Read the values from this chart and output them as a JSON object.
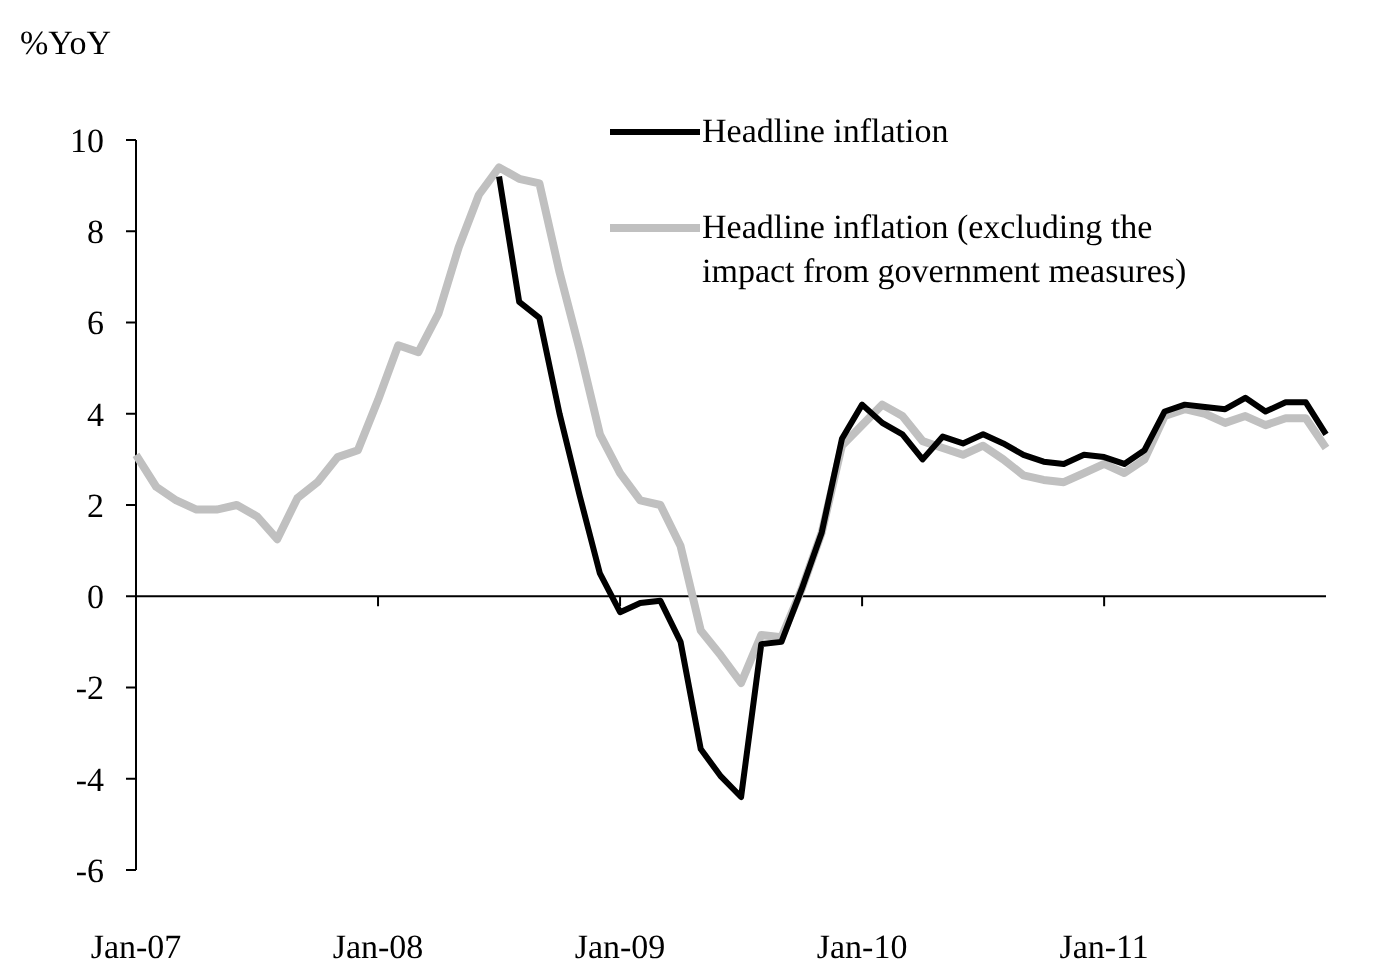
{
  "chart_data": {
    "type": "line",
    "ylabel": "%YoY",
    "categories": [
      "Jan-07",
      null,
      null,
      null,
      null,
      null,
      null,
      null,
      null,
      null,
      null,
      null,
      "Jan-08",
      null,
      null,
      null,
      null,
      null,
      null,
      null,
      null,
      null,
      null,
      null,
      "Jan-09",
      null,
      null,
      null,
      null,
      null,
      null,
      null,
      null,
      null,
      null,
      null,
      "Jan-10",
      null,
      null,
      null,
      null,
      null,
      null,
      null,
      null,
      null,
      null,
      null,
      "Jan-11",
      null,
      null,
      null,
      null,
      null,
      null,
      null,
      null,
      null,
      null,
      null
    ],
    "series": [
      {
        "name": "Headline inflation (excluding the impact from government measures)",
        "color": "#c0c0c0",
        "values": [
          3.1,
          2.4,
          2.1,
          1.9,
          1.9,
          2.0,
          1.75,
          1.25,
          2.15,
          2.5,
          3.05,
          3.2,
          4.3,
          5.5,
          5.35,
          6.2,
          7.65,
          8.8,
          9.4,
          9.15,
          9.05,
          7.1,
          5.4,
          3.55,
          2.7,
          2.1,
          2.0,
          1.1,
          -0.75,
          -1.3,
          -1.9,
          -0.85,
          -0.9,
          0.15,
          1.4,
          3.3,
          3.75,
          4.2,
          3.95,
          3.4,
          3.25,
          3.1,
          3.3,
          3.0,
          2.65,
          2.55,
          2.5,
          2.7,
          2.9,
          2.7,
          3.0,
          3.95,
          4.1,
          4.0,
          3.8,
          3.95,
          3.75,
          3.9,
          3.9,
          3.25
        ]
      },
      {
        "name": "Headline inflation",
        "color": "#000000",
        "values": [
          null,
          null,
          null,
          null,
          null,
          null,
          null,
          null,
          null,
          null,
          null,
          null,
          null,
          null,
          null,
          null,
          null,
          null,
          9.2,
          6.45,
          6.1,
          4.0,
          2.2,
          0.5,
          -0.35,
          -0.15,
          -0.1,
          -1.0,
          -3.35,
          -3.95,
          -4.4,
          -1.05,
          -1.0,
          0.15,
          1.4,
          3.45,
          4.2,
          3.8,
          3.55,
          3.0,
          3.5,
          3.35,
          3.55,
          3.35,
          3.1,
          2.95,
          2.9,
          3.1,
          3.05,
          2.9,
          3.2,
          4.05,
          4.2,
          4.15,
          4.1,
          4.35,
          4.05,
          4.25,
          4.25,
          3.55
        ]
      }
    ],
    "ylim": [
      -6,
      10
    ],
    "yticks": [
      -6,
      -4,
      -2,
      0,
      2,
      4,
      6,
      8,
      10
    ],
    "legend": "top right",
    "marker": "none",
    "line_style": "solid"
  }
}
